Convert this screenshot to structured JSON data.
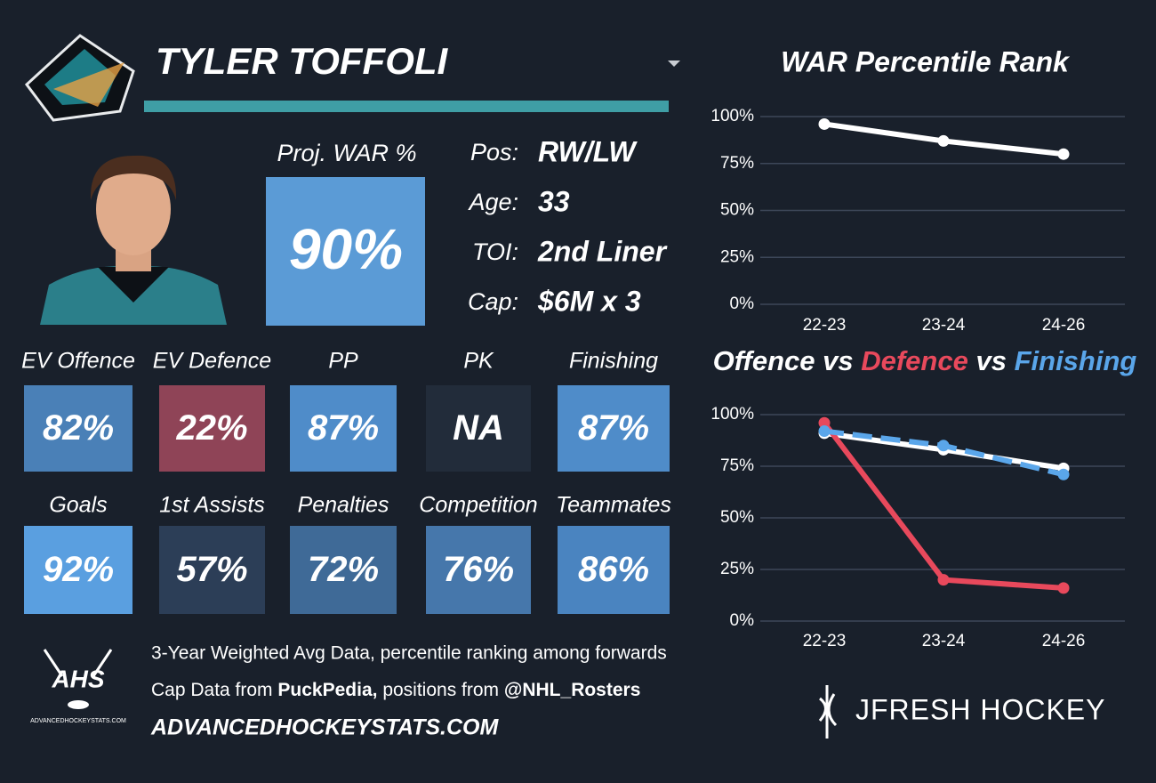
{
  "header": {
    "player_name": "TYLER TOFFOLI"
  },
  "projection": {
    "label": "Proj. WAR %",
    "value": "90%",
    "color": "#5b9bd6"
  },
  "info": [
    {
      "label": "Pos:",
      "value": "RW/LW"
    },
    {
      "label": "Age:",
      "value": "33"
    },
    {
      "label": "TOI:",
      "value": "2nd Liner"
    },
    {
      "label": "Cap:",
      "value": "$6M x 3"
    }
  ],
  "tiles": [
    {
      "label": "EV Offence",
      "value": "82%",
      "color": "#4a80b7"
    },
    {
      "label": "EV Defence",
      "value": "22%",
      "color": "#8f4457"
    },
    {
      "label": "PP",
      "value": "87%",
      "color": "#4f8cc9"
    },
    {
      "label": "PK",
      "value": "NA",
      "color": "#222c3a"
    },
    {
      "label": "Finishing",
      "value": "87%",
      "color": "#4f8cc9"
    },
    {
      "label": "Goals",
      "value": "92%",
      "color": "#5a9fe0"
    },
    {
      "label": "1st Assists",
      "value": "57%",
      "color": "#2c3e57"
    },
    {
      "label": "Penalties",
      "value": "72%",
      "color": "#3f6a97"
    },
    {
      "label": "Competition",
      "value": "76%",
      "color": "#4677ab"
    },
    {
      "label": "Teammates",
      "value": "86%",
      "color": "#4a84c0"
    }
  ],
  "footer": {
    "logo_text": "AHS",
    "logo_subtext": "ADVANCEDHOCKEYSTATS.COM",
    "line1": "3-Year Weighted Avg Data, percentile ranking among forwards",
    "line2": [
      "Cap Data from",
      "PuckPedia,",
      "positions from",
      "@NHL_Rosters"
    ],
    "site": "ADVANCEDHOCKEYSTATS.COM",
    "brand": "JFRESH HOCKEY"
  },
  "chart_data": [
    {
      "type": "line",
      "title": "WAR Percentile Rank",
      "categories": [
        "22-23",
        "23-24",
        "24-26"
      ],
      "series": [
        {
          "color": "#ffffff",
          "values": [
            96,
            87,
            80
          ]
        }
      ],
      "ylim": [
        0,
        100
      ],
      "yticks": [
        {
          "value": 0,
          "label": "0%"
        },
        {
          "value": 25,
          "label": "25%"
        },
        {
          "value": 50,
          "label": "50%"
        },
        {
          "value": 75,
          "label": "75%"
        },
        {
          "value": 100,
          "label": "100%"
        }
      ],
      "grid": true
    },
    {
      "type": "line",
      "title_joiner": "vs",
      "categories": [
        "22-23",
        "23-24",
        "24-26"
      ],
      "series": [
        {
          "name": "Offence",
          "color": "#ffffff",
          "values": [
            91,
            83,
            74
          ]
        },
        {
          "name": "Defence",
          "color": "#e8495c",
          "values": [
            96,
            20,
            16
          ]
        },
        {
          "name": "Finishing",
          "color": "#5aa6ea",
          "dashed": true,
          "values": [
            92,
            85,
            71
          ]
        }
      ],
      "ylim": [
        0,
        100
      ],
      "yticks": [
        {
          "value": 0,
          "label": "0%"
        },
        {
          "value": 25,
          "label": "25%"
        },
        {
          "value": 50,
          "label": "50%"
        },
        {
          "value": 75,
          "label": "75%"
        },
        {
          "value": 100,
          "label": "100%"
        }
      ],
      "grid": true
    }
  ]
}
